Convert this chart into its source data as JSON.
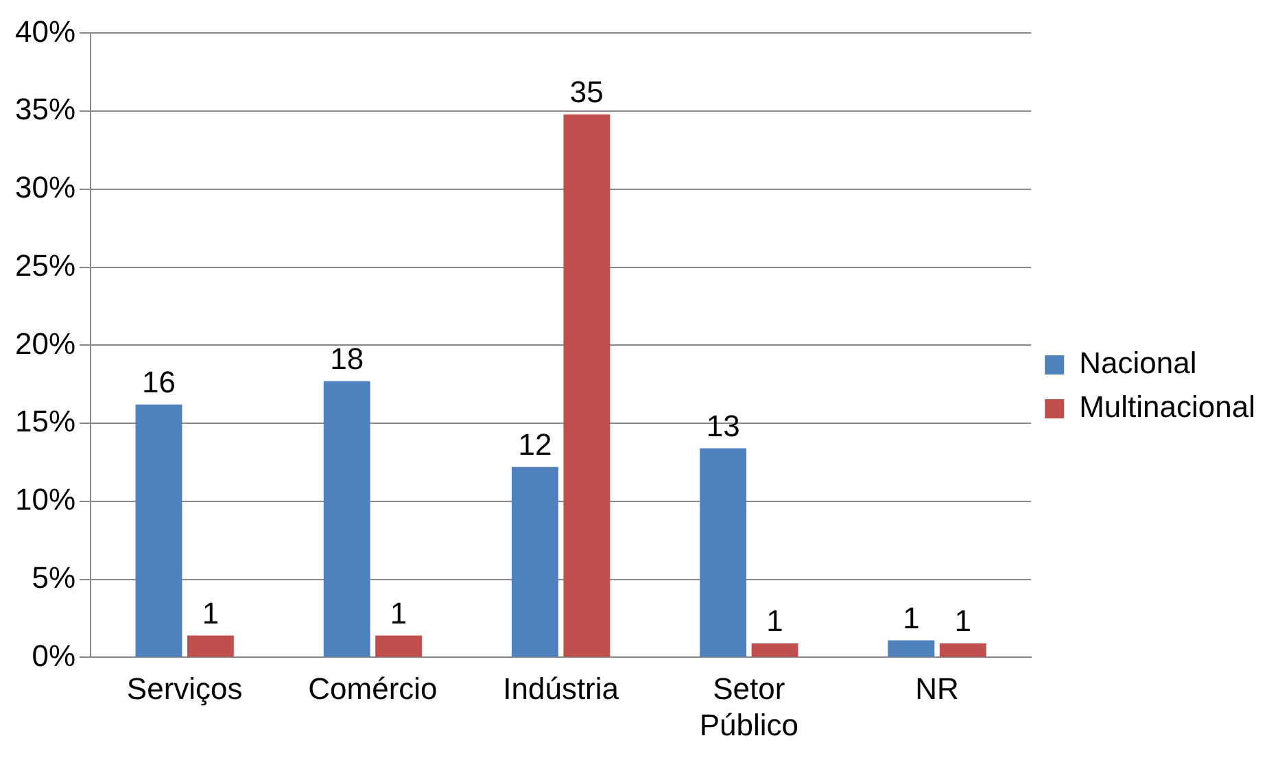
{
  "chart_data": {
    "type": "bar",
    "categories": [
      "Serviços",
      "Comércio",
      "Indústria",
      "Setor Público",
      "NR"
    ],
    "series": [
      {
        "name": "Nacional",
        "color": "#4f81bd",
        "values": [
          16.2,
          17.7,
          12.2,
          13.4,
          1.1
        ],
        "value_labels": [
          "16",
          "18",
          "12",
          "13",
          "1"
        ]
      },
      {
        "name": "Multinacional",
        "color": "#c0504d",
        "values": [
          1.4,
          1.4,
          34.8,
          0.9,
          0.9
        ],
        "value_labels": [
          "1",
          "1",
          "35",
          "1",
          "1"
        ]
      }
    ],
    "ylim": [
      0,
      40
    ],
    "yticks": [
      {
        "value": 0,
        "label": "0%"
      },
      {
        "value": 5,
        "label": "5%"
      },
      {
        "value": 10,
        "label": "10%"
      },
      {
        "value": 15,
        "label": "15%"
      },
      {
        "value": 20,
        "label": "20%"
      },
      {
        "value": 25,
        "label": "25%"
      },
      {
        "value": 30,
        "label": "30%"
      },
      {
        "value": 35,
        "label": "35%"
      },
      {
        "value": 40,
        "label": "40%"
      }
    ],
    "grid": "y",
    "legend": "right"
  }
}
